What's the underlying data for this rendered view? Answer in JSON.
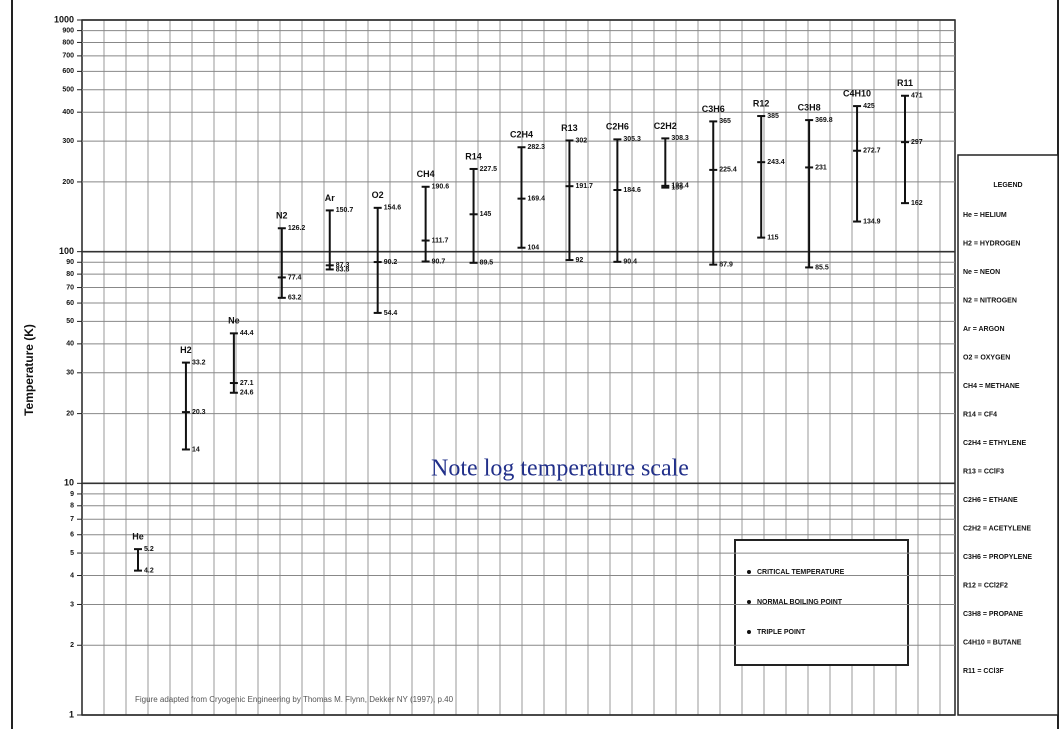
{
  "chart_data": {
    "type": "range",
    "y_label": "Temperature (K)",
    "note": "Note log temperature scale",
    "source": "Figure adapted from Cryogenic Engineering by Thomas M. Flynn, Dekker NY (1997), p.40",
    "log_y": true,
    "grid": true,
    "ylim": [
      1,
      1000
    ],
    "yticks": [
      1,
      2,
      3,
      4,
      5,
      6,
      7,
      8,
      9,
      10,
      20,
      30,
      40,
      50,
      60,
      70,
      80,
      90,
      100,
      200,
      300,
      400,
      500,
      600,
      700,
      800,
      900,
      1000
    ],
    "categories": [
      "He",
      "H2",
      "Ne",
      "N2",
      "Ar",
      "O2",
      "CH4",
      "R14",
      "C2H4",
      "R13",
      "C2H6",
      "C2H2",
      "C3H6",
      "R12",
      "C3H8",
      "C4H10",
      "R11"
    ],
    "series": [
      {
        "name": "CRITICAL TEMPERATURE",
        "color": "#111111",
        "values": [
          5.2,
          33.2,
          44.4,
          126.2,
          150.7,
          154.6,
          190.6,
          227.5,
          282.3,
          302,
          305.3,
          308.3,
          365,
          385,
          369.8,
          425,
          471
        ]
      },
      {
        "name": "NORMAL BOILING POINT",
        "color": "#111111",
        "values": [
          4.2,
          20.3,
          27.1,
          77.4,
          87.3,
          90.2,
          111.7,
          145,
          169.4,
          191.7,
          184.6,
          189,
          225.4,
          243.4,
          231,
          272.7,
          297
        ]
      },
      {
        "name": "TRIPLE POINT",
        "color": "#111111",
        "values": [
          null,
          14.0,
          24.6,
          63.2,
          83.8,
          54.4,
          90.7,
          89.5,
          104,
          92,
          90.4,
          192.4,
          87.9,
          115,
          85.5,
          134.9,
          162
        ]
      }
    ],
    "legend_title": "LEGEND",
    "legend_entries": [
      "He = HELIUM",
      "H2 = HYDROGEN",
      "Ne = NEON",
      "N2 = NITROGEN",
      "Ar = ARGON",
      "O2 = OXYGEN",
      "CH4 = METHANE",
      "R14 = CF4",
      "C2H4 = ETHYLENE",
      "R13 = CClF3",
      "C2H6 = ETHANE",
      "C2H2 = ACETYLENE",
      "C3H6 = PROPYLENE",
      "R12 = CCl2F2",
      "C3H8 = PROPANE",
      "C4H10 = BUTANE",
      "R11 = CCl3F"
    ]
  }
}
